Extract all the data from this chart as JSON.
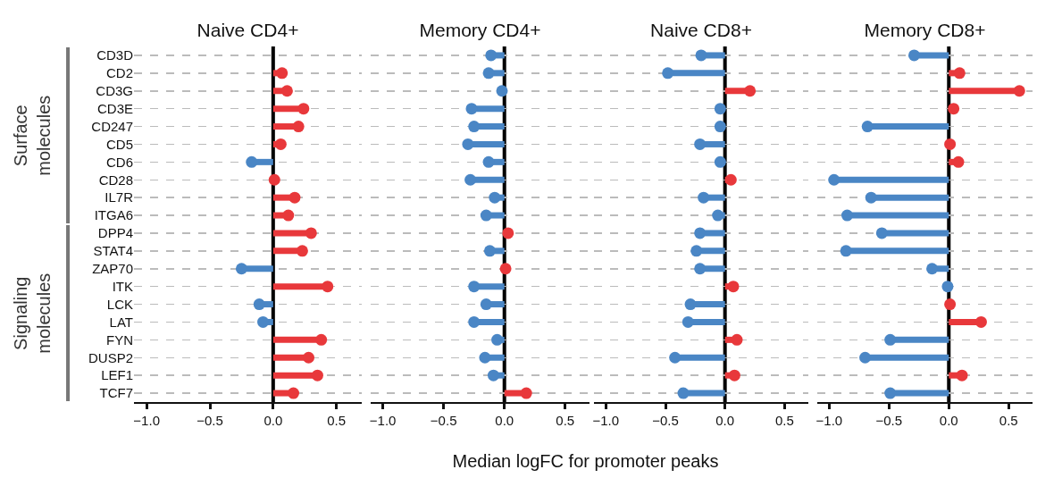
{
  "chart_data": [
    {
      "type": "lollipop",
      "title": "Naive CD4+",
      "xlabel": "Median logFC for promoter peaks",
      "orientation": "horizontal",
      "categories": [
        "CD3D",
        "CD2",
        "CD3G",
        "CD3E",
        "CD247",
        "CD5",
        "CD6",
        "CD28",
        "IL7R",
        "ITGA6",
        "DPP4",
        "STAT4",
        "ZAP70",
        "ITK",
        "LCK",
        "LAT",
        "FYN",
        "DUSP2",
        "LEF1",
        "TCF7"
      ],
      "series": [
        {
          "values": [
            null,
            0.07,
            0.11,
            0.24,
            0.2,
            0.06,
            -0.17,
            0.01,
            0.17,
            0.12,
            0.3,
            0.23,
            -0.25,
            0.43,
            -0.11,
            -0.08,
            0.38,
            0.28,
            0.35,
            0.16
          ],
          "colors": [
            null,
            "#e8383b",
            "#e8383b",
            "#e8383b",
            "#e8383b",
            "#e8383b",
            "#4a86c5",
            "#e8383b",
            "#e8383b",
            "#e8383b",
            "#e8383b",
            "#e8383b",
            "#4a86c5",
            "#e8383b",
            "#4a86c5",
            "#4a86c5",
            "#e8383b",
            "#e8383b",
            "#e8383b",
            "#e8383b"
          ]
        }
      ],
      "xlim": [
        -1.1,
        0.7
      ],
      "xticks": [
        {
          "value": -1,
          "label": "−1.0"
        },
        {
          "value": -0.5,
          "label": "−0.5"
        },
        {
          "value": 0,
          "label": "0.0"
        },
        {
          "value": 0.5,
          "label": "0.5"
        }
      ],
      "grid": "y",
      "ref_lines": [
        {
          "axis": "x",
          "value": 0,
          "color": "#000000"
        }
      ],
      "annotations": [
        "Surface molecules",
        "Signaling molecules"
      ]
    },
    {
      "type": "lollipop",
      "title": "Memory CD4+",
      "orientation": "horizontal",
      "tick_labels": "x",
      "categories": [
        null,
        null,
        null,
        null,
        null,
        null,
        null,
        null,
        null,
        null,
        null,
        null,
        null,
        null,
        null,
        null,
        null,
        null,
        null,
        null
      ],
      "series": [
        {
          "values": [
            -0.11,
            -0.13,
            -0.02,
            -0.27,
            -0.25,
            -0.3,
            -0.13,
            -0.28,
            -0.08,
            -0.15,
            0.03,
            -0.12,
            0.01,
            -0.25,
            -0.15,
            -0.25,
            -0.06,
            -0.16,
            -0.09,
            0.18
          ],
          "colors": [
            "#4a86c5",
            "#4a86c5",
            "#4a86c5",
            "#4a86c5",
            "#4a86c5",
            "#4a86c5",
            "#4a86c5",
            "#4a86c5",
            "#4a86c5",
            "#4a86c5",
            "#e8383b",
            "#4a86c5",
            "#e8383b",
            "#4a86c5",
            "#4a86c5",
            "#4a86c5",
            "#4a86c5",
            "#4a86c5",
            "#4a86c5",
            "#e8383b"
          ]
        }
      ],
      "xlim": [
        -1.1,
        0.7
      ],
      "xticks": [
        {
          "value": -1,
          "label": "−1.0"
        },
        {
          "value": -0.5,
          "label": "−0.5"
        },
        {
          "value": 0,
          "label": "0.0"
        },
        {
          "value": 0.5,
          "label": "0.5"
        }
      ],
      "grid": "y",
      "ref_lines": [
        {
          "axis": "x",
          "value": 0,
          "color": "#000000"
        }
      ]
    },
    {
      "type": "lollipop",
      "title": "Naive CD8+",
      "orientation": "horizontal",
      "tick_labels": "x",
      "categories": [
        null,
        null,
        null,
        null,
        null,
        null,
        null,
        null,
        null,
        null,
        null,
        null,
        null,
        null,
        null,
        null,
        null,
        null,
        null,
        null
      ],
      "series": [
        {
          "values": [
            -0.2,
            -0.48,
            0.21,
            -0.04,
            -0.04,
            -0.21,
            -0.04,
            0.05,
            -0.18,
            -0.06,
            -0.21,
            -0.24,
            -0.21,
            0.07,
            -0.29,
            -0.31,
            0.1,
            -0.42,
            0.08,
            -0.35
          ],
          "colors": [
            "#4a86c5",
            "#4a86c5",
            "#e8383b",
            "#4a86c5",
            "#4a86c5",
            "#4a86c5",
            "#4a86c5",
            "#e8383b",
            "#4a86c5",
            "#4a86c5",
            "#4a86c5",
            "#4a86c5",
            "#4a86c5",
            "#e8383b",
            "#4a86c5",
            "#4a86c5",
            "#e8383b",
            "#4a86c5",
            "#e8383b",
            "#4a86c5"
          ]
        }
      ],
      "xlim": [
        -1.1,
        0.7
      ],
      "xticks": [
        {
          "value": -1,
          "label": "−1.0"
        },
        {
          "value": -0.5,
          "label": "−0.5"
        },
        {
          "value": 0,
          "label": "0.0"
        },
        {
          "value": 0.5,
          "label": "0.5"
        }
      ],
      "grid": "y",
      "ref_lines": [
        {
          "axis": "x",
          "value": 0,
          "color": "#000000"
        }
      ]
    },
    {
      "type": "lollipop",
      "title": "Memory CD8+",
      "orientation": "horizontal",
      "tick_labels": "x",
      "categories": [
        null,
        null,
        null,
        null,
        null,
        null,
        null,
        null,
        null,
        null,
        null,
        null,
        null,
        null,
        null,
        null,
        null,
        null,
        null,
        null
      ],
      "series": [
        {
          "values": [
            -0.29,
            0.09,
            0.59,
            0.04,
            -0.68,
            0.01,
            0.08,
            -0.96,
            -0.65,
            -0.85,
            -0.56,
            -0.86,
            -0.14,
            -0.01,
            0.01,
            0.27,
            -0.49,
            -0.7,
            0.11,
            -0.49
          ],
          "colors": [
            "#4a86c5",
            "#e8383b",
            "#e8383b",
            "#e8383b",
            "#4a86c5",
            "#e8383b",
            "#e8383b",
            "#4a86c5",
            "#4a86c5",
            "#4a86c5",
            "#4a86c5",
            "#4a86c5",
            "#4a86c5",
            "#4a86c5",
            "#e8383b",
            "#e8383b",
            "#4a86c5",
            "#4a86c5",
            "#e8383b",
            "#4a86c5"
          ]
        }
      ],
      "xlim": [
        -1.1,
        0.7
      ],
      "xticks": [
        {
          "value": -1,
          "label": "−1.0"
        },
        {
          "value": -0.5,
          "label": "−0.5"
        },
        {
          "value": 0,
          "label": "0.0"
        },
        {
          "value": 0.5,
          "label": "0.5"
        }
      ],
      "grid": "y",
      "ref_lines": [
        {
          "axis": "x",
          "value": 0,
          "color": "#000000"
        }
      ]
    }
  ]
}
